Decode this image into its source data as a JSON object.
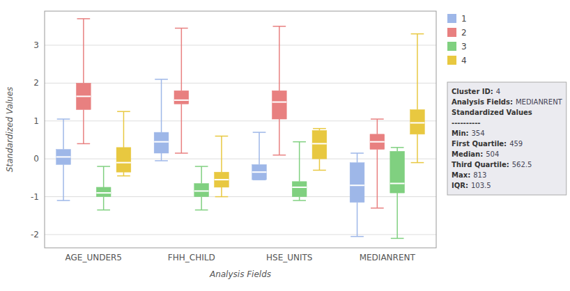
{
  "chart_data": {
    "type": "box",
    "xlabel": "Analysis Fields",
    "ylabel": "Standardized Values",
    "categories": [
      "AGE_UNDER5",
      "FHH_CHILD",
      "HSE_UNITS",
      "MEDIANRENT"
    ],
    "series": [
      {
        "name": "1",
        "color": "#9eb7e8",
        "min": [
          -1.1,
          -0.05,
          -0.55,
          -2.05
        ],
        "q1": [
          -0.15,
          0.15,
          -0.55,
          -1.15
        ],
        "median": [
          0.05,
          0.45,
          -0.35,
          -0.7
        ],
        "q3": [
          0.25,
          0.7,
          -0.15,
          -0.1
        ],
        "max": [
          1.05,
          2.1,
          0.7,
          0.15
        ]
      },
      {
        "name": "2",
        "color": "#e88080",
        "min": [
          0.4,
          0.15,
          0.1,
          -1.3
        ],
        "q1": [
          1.3,
          1.45,
          1.05,
          0.25
        ],
        "median": [
          1.65,
          1.55,
          1.5,
          0.45
        ],
        "q3": [
          2.0,
          1.8,
          1.8,
          0.65
        ],
        "max": [
          3.7,
          3.45,
          3.5,
          1.05
        ]
      },
      {
        "name": "3",
        "color": "#80d080",
        "min": [
          -1.35,
          -1.35,
          -1.1,
          -2.1
        ],
        "q1": [
          -1.0,
          -1.0,
          -1.0,
          -0.9
        ],
        "median": [
          -0.9,
          -0.85,
          -0.75,
          -0.65
        ],
        "q3": [
          -0.75,
          -0.65,
          -0.6,
          0.2
        ],
        "max": [
          -0.2,
          -0.2,
          0.45,
          0.3
        ]
      },
      {
        "name": "4",
        "color": "#e8c840",
        "min": [
          -0.45,
          -1.0,
          -0.3,
          -0.1
        ],
        "q1": [
          -0.35,
          -0.75,
          0.0,
          0.65
        ],
        "median": [
          -0.1,
          -0.55,
          0.4,
          0.95
        ],
        "q3": [
          0.3,
          -0.35,
          0.75,
          1.3
        ],
        "max": [
          1.25,
          0.6,
          0.8,
          3.3
        ]
      }
    ],
    "ylim": [
      -2.35,
      3.9
    ],
    "yticks": [
      -2,
      -1,
      0,
      1,
      2,
      3
    ],
    "grid": true,
    "legend": "upper right",
    "annotation": {
      "lines": [
        {
          "label": "Cluster ID:",
          "text": "4"
        },
        {
          "label": "Analysis Fields:",
          "text": "MEDIANRENT"
        },
        {
          "label": "Standardized Values"
        },
        {
          "label": "----------"
        },
        {
          "label": "Min:",
          "text": "354"
        },
        {
          "label": "First Quartile:",
          "text": "459"
        },
        {
          "label": "Median:",
          "text": "504"
        },
        {
          "label": "Third Quartile:",
          "text": "562.5"
        },
        {
          "label": "Max:",
          "text": "813"
        },
        {
          "label": "IQR:",
          "text": "103.5"
        }
      ]
    }
  }
}
